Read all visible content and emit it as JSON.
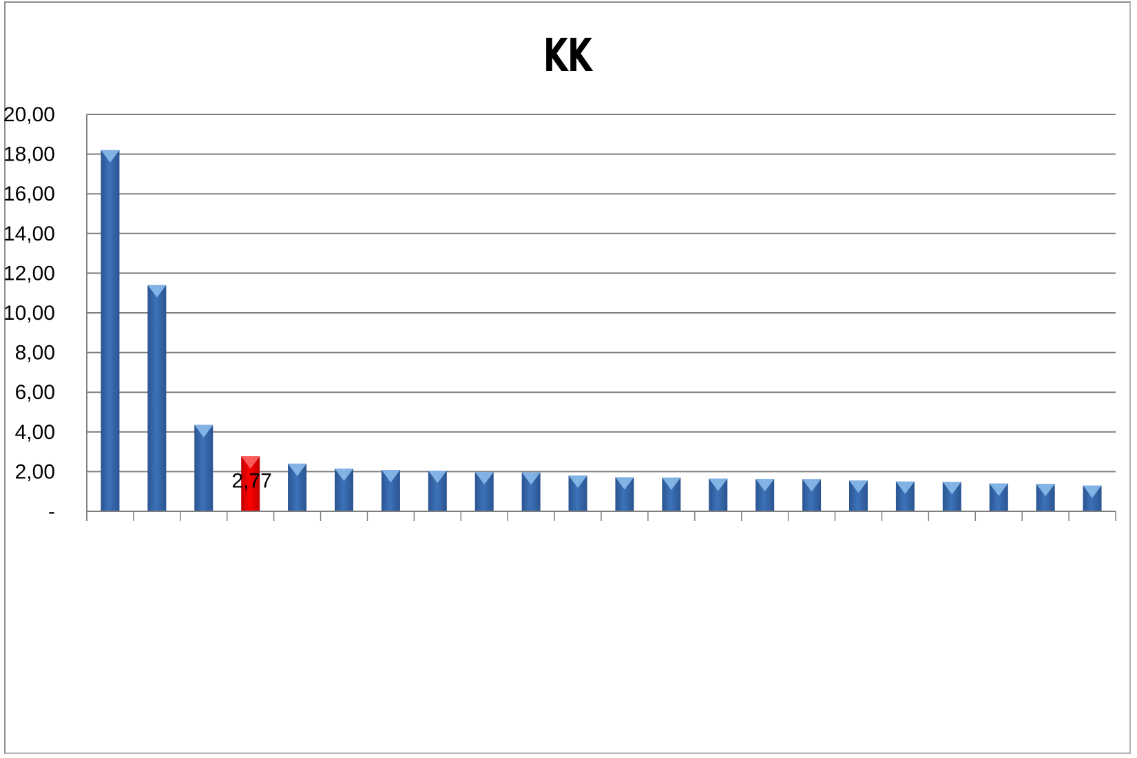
{
  "chart_data": {
    "type": "bar",
    "title": "KK",
    "xlabel": "",
    "ylabel": "",
    "ylim": [
      0,
      20
    ],
    "y_ticks": [
      "-",
      "2,00",
      "4,00",
      "6,00",
      "8,00",
      "10,00",
      "12,00",
      "14,00",
      "16,00",
      "18,00",
      "20,00"
    ],
    "grid": true,
    "legend": "none",
    "values": [
      18.2,
      11.4,
      4.35,
      2.77,
      2.4,
      2.15,
      2.08,
      2.05,
      1.98,
      1.96,
      1.8,
      1.72,
      1.7,
      1.65,
      1.63,
      1.62,
      1.55,
      1.5,
      1.48,
      1.4,
      1.38,
      1.3
    ],
    "highlight_index": 3,
    "highlight_label": "2,77",
    "colors": {
      "bar": "#3d72b8",
      "bar_dark": "#2a5491",
      "bar_light": "#8fc0ee",
      "highlight": "#ff0000",
      "highlight_dark": "#c00000",
      "grid": "#7f7f7f"
    }
  }
}
